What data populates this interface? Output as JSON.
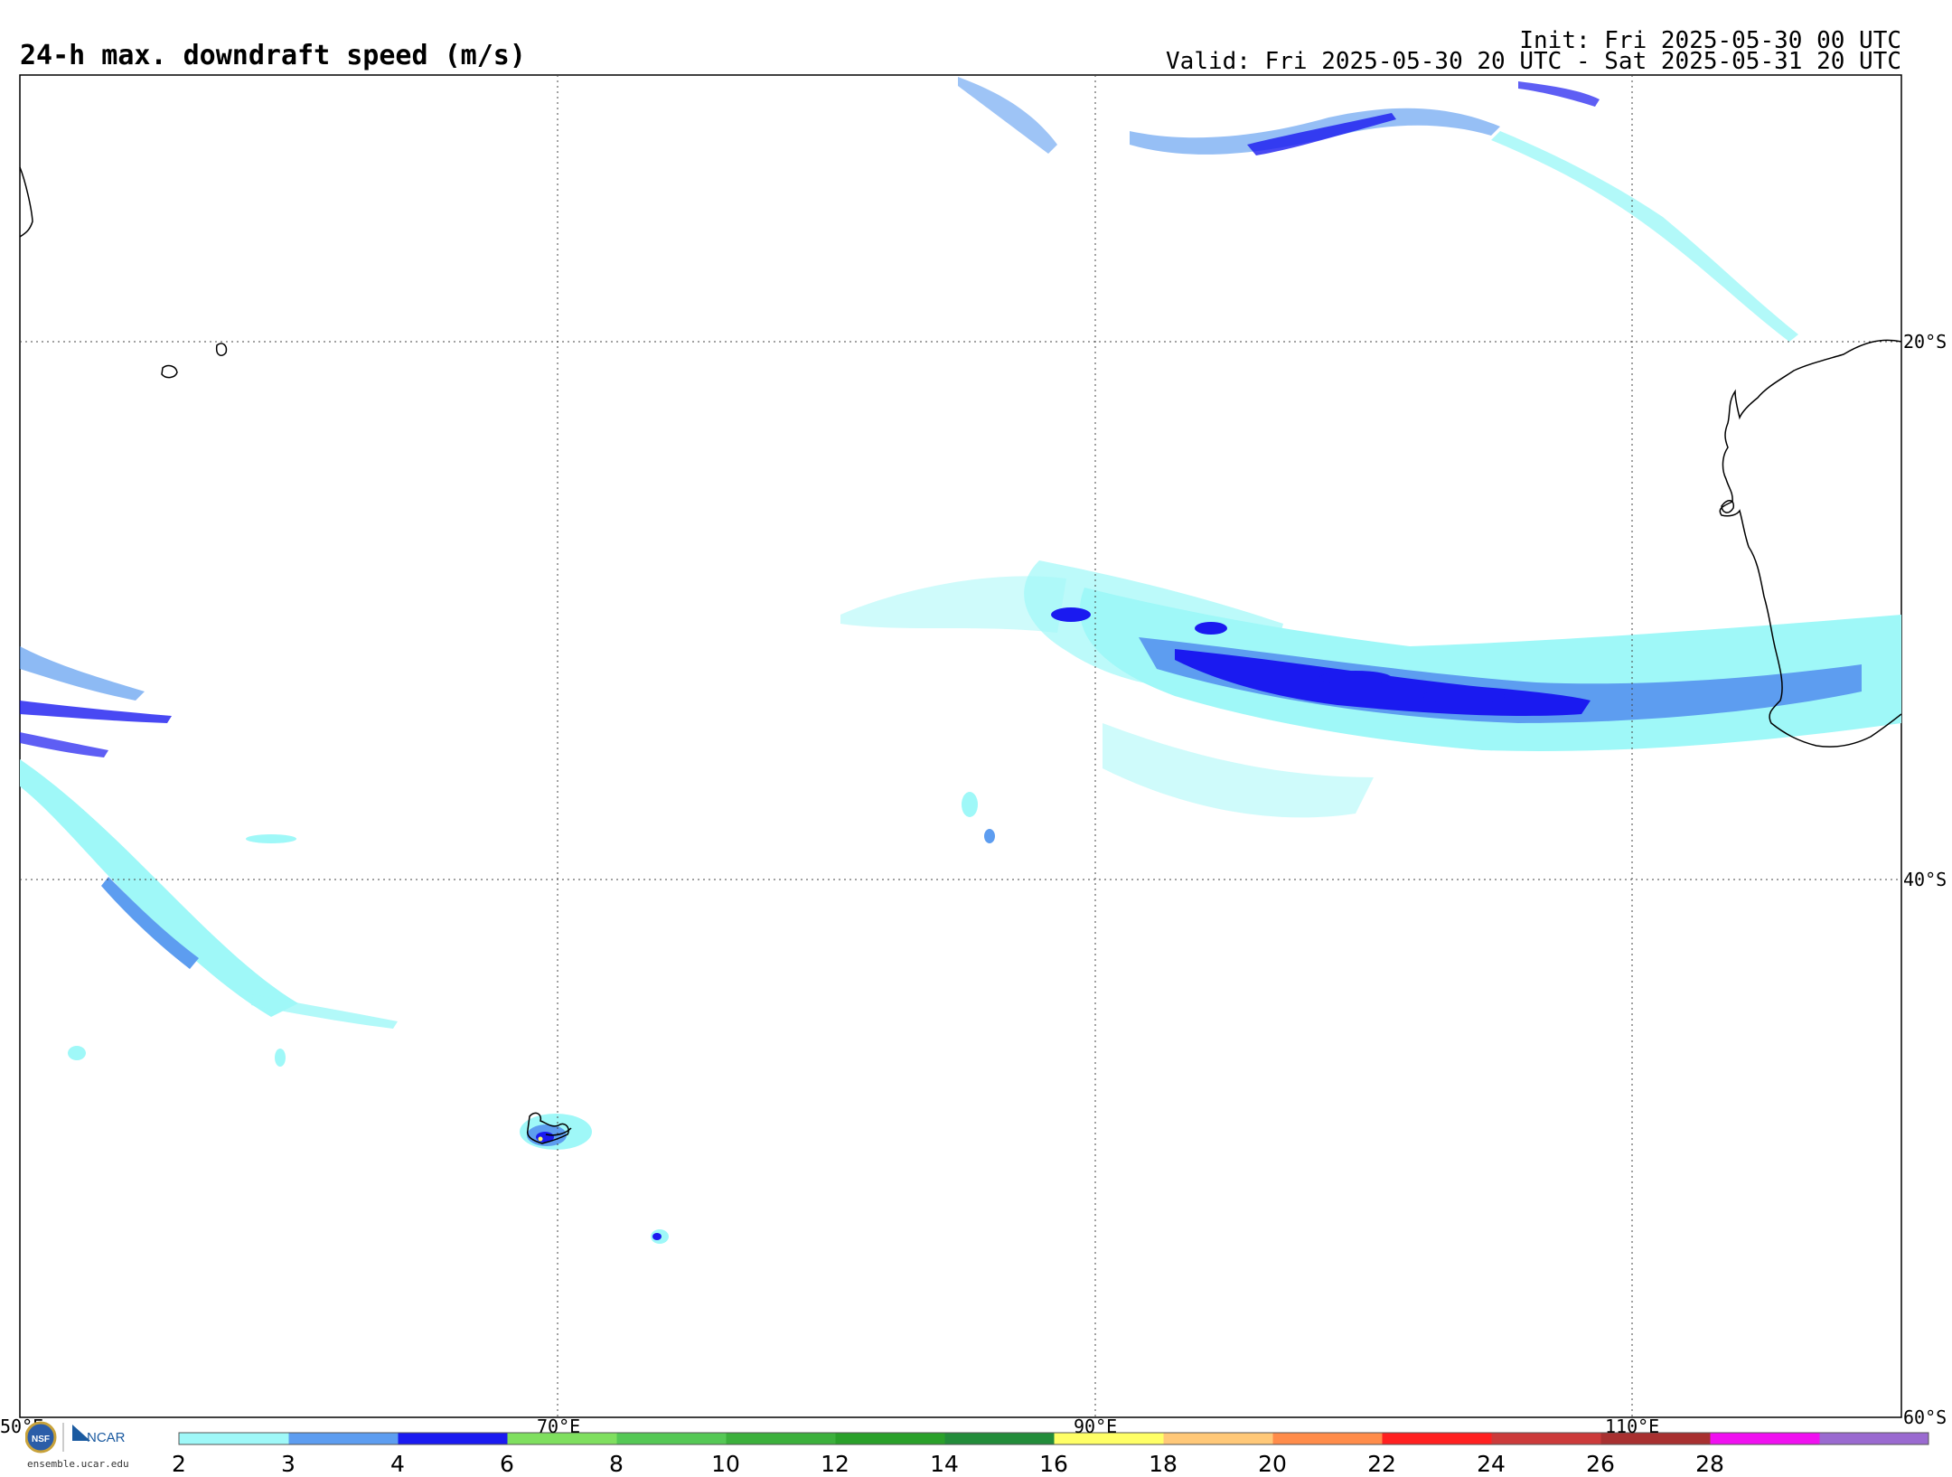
{
  "title": "24-h max. downdraft speed (m/s)",
  "init": "Init: Fri 2025-05-30 00 UTC",
  "valid": "Valid: Fri 2025-05-30 20 UTC - Sat 2025-05-31 20 UTC",
  "map": {
    "lon_labels": [
      "50°E",
      "70°E",
      "90°E",
      "110°E"
    ],
    "lat_labels": [
      "20°S",
      "40°S",
      "60°S"
    ],
    "gridlines": "dotted"
  },
  "colorbar": {
    "ticks": [
      "2",
      "3",
      "4",
      "6",
      "8",
      "10",
      "12",
      "14",
      "16",
      "18",
      "20",
      "22",
      "24",
      "26",
      "28"
    ],
    "colors": [
      "#9ff8f8",
      "#5d9df0",
      "#1a1af0",
      "#7fdf5f",
      "#55c855",
      "#3cb03c",
      "#2aa02a",
      "#238c3a",
      "#ffff66",
      "#ffc878",
      "#ff8c4a",
      "#ff2020",
      "#cc3a3a",
      "#a83030",
      "#f010f0",
      "#9a6ad0"
    ]
  },
  "credits": {
    "org1": "NSF",
    "org2": "NCAR",
    "site": "ensemble.ucar.edu"
  }
}
